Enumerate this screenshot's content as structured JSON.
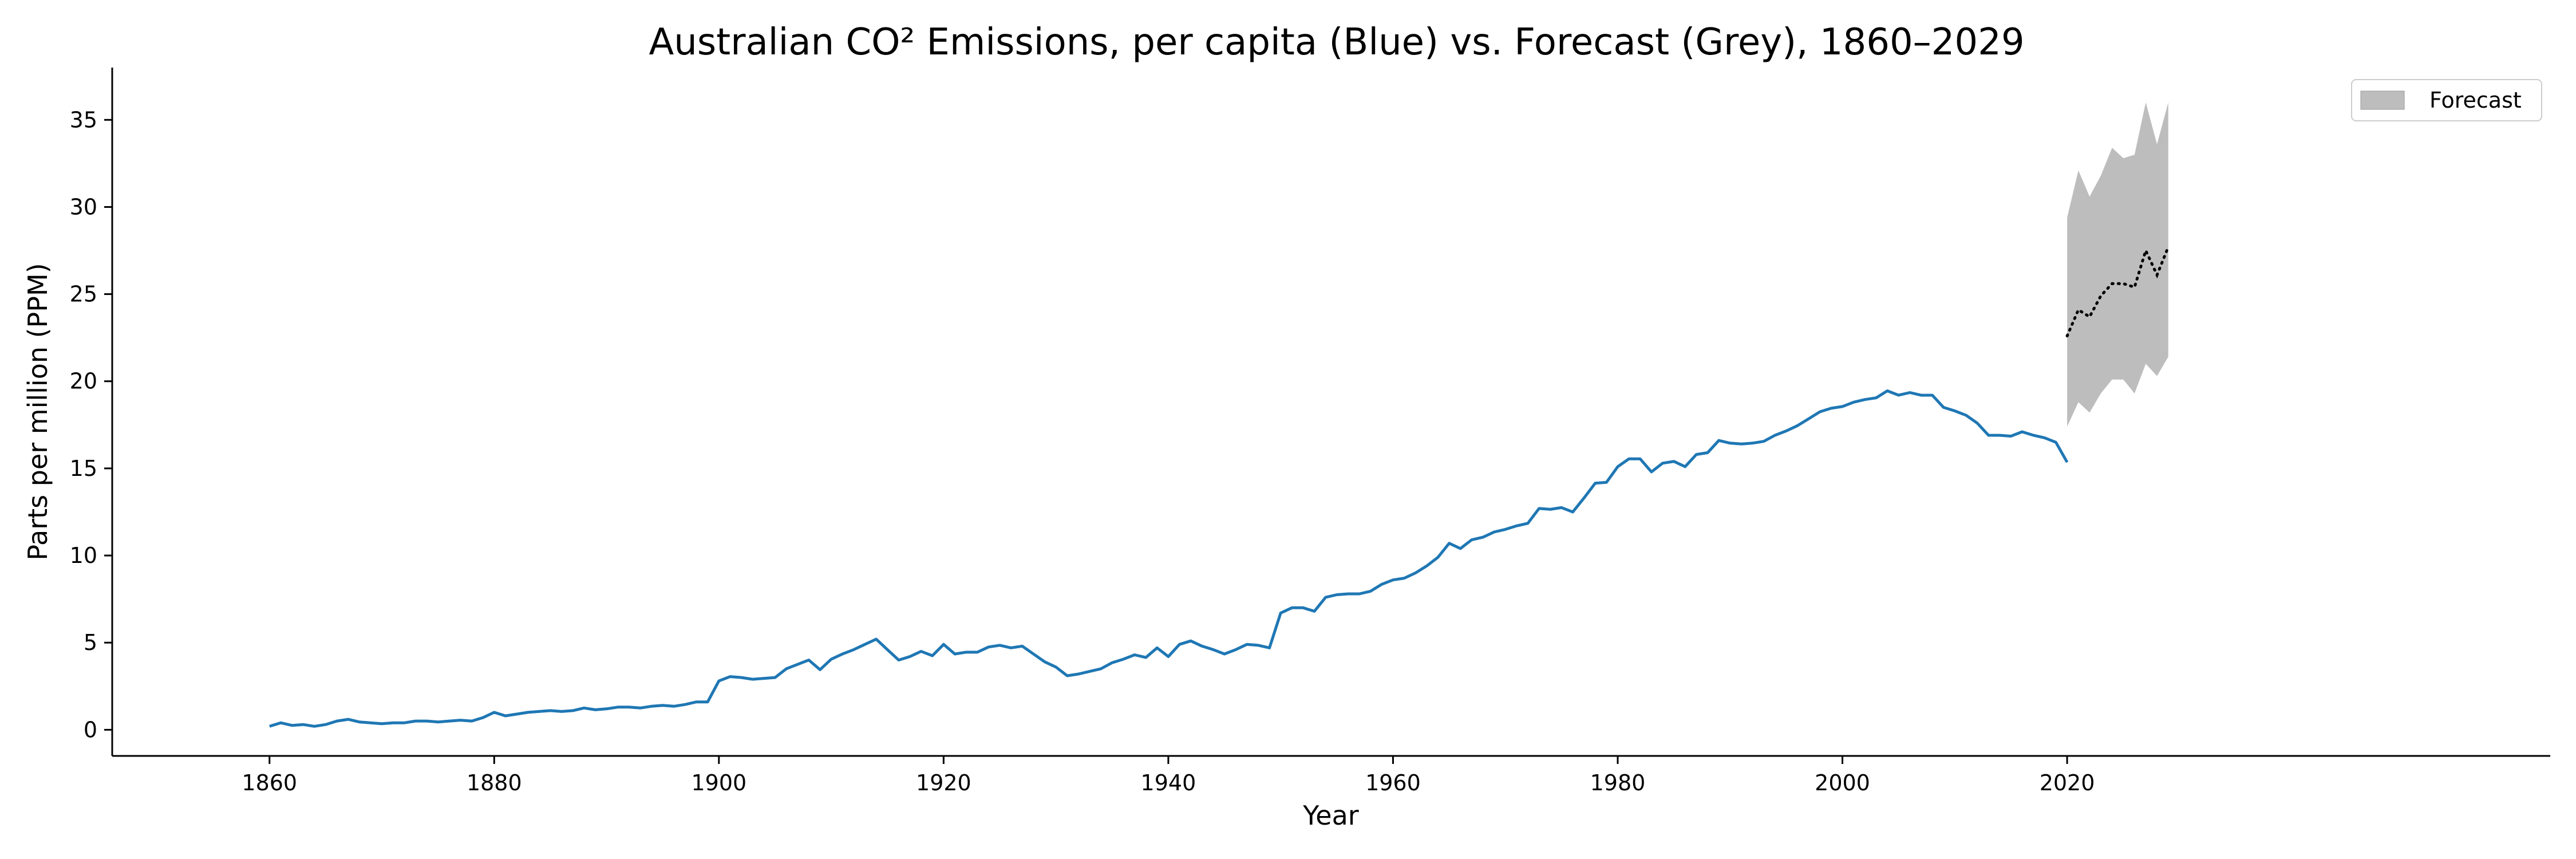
{
  "chart_data": {
    "type": "line",
    "title": "Australian CO² Emissions, per capita (Blue) vs. Forecast (Grey), 1860–2029",
    "xlabel": "Year",
    "ylabel": "Parts per million (PPM)",
    "xlim": [
      1846,
      2063
    ],
    "ylim": [
      -1.5,
      38
    ],
    "xticks": [
      1860,
      1880,
      1900,
      1920,
      1940,
      1960,
      1980,
      2000,
      2020
    ],
    "yticks": [
      0,
      5,
      10,
      15,
      20,
      25,
      30,
      35
    ],
    "grid": false,
    "legend": {
      "placement": "top-right",
      "entries": [
        "Forecast"
      ]
    },
    "colors": {
      "history": "#1f77b4",
      "forecast_band": "#bdbdbd",
      "forecast_line": "#000000"
    },
    "series": [
      {
        "x": [
          1860,
          1861,
          1862,
          1863,
          1864,
          1865,
          1866,
          1867,
          1868,
          1869,
          1870,
          1871,
          1872,
          1873,
          1874,
          1875,
          1876,
          1877,
          1878,
          1879,
          1880,
          1881,
          1882,
          1883,
          1884,
          1885,
          1886,
          1887,
          1888,
          1889,
          1890,
          1891,
          1892,
          1893,
          1894,
          1895,
          1896,
          1897,
          1898,
          1899,
          1900,
          1901,
          1902,
          1903,
          1904,
          1905,
          1906,
          1907,
          1908,
          1909,
          1910,
          1911,
          1912,
          1913,
          1914,
          1915,
          1916,
          1917,
          1918,
          1919,
          1920,
          1921,
          1922,
          1923,
          1924,
          1925,
          1926,
          1927,
          1928,
          1929,
          1930,
          1931,
          1932,
          1933,
          1934,
          1935,
          1936,
          1937,
          1938,
          1939,
          1940,
          1941,
          1942,
          1943,
          1944,
          1945,
          1946,
          1947,
          1948,
          1949,
          1950,
          1951,
          1952,
          1953,
          1954,
          1955,
          1956,
          1957,
          1958,
          1959,
          1960,
          1961,
          1962,
          1963,
          1964,
          1965,
          1966,
          1967,
          1968,
          1969,
          1970,
          1971,
          1972,
          1973,
          1974,
          1975,
          1976,
          1977,
          1978,
          1979,
          1980,
          1981,
          1982,
          1983,
          1984,
          1985,
          1986,
          1987,
          1988,
          1989,
          1990,
          1991,
          1992,
          1993,
          1994,
          1995,
          1996,
          1997,
          1998,
          1999,
          2000,
          2001,
          2002,
          2003,
          2004,
          2005,
          2006,
          2007,
          2008,
          2009,
          2010,
          2011,
          2012,
          2013,
          2014,
          2015,
          2016,
          2017,
          2018,
          2019,
          2020
        ],
        "values": [
          0.2,
          0.4,
          0.25,
          0.3,
          0.2,
          0.3,
          0.5,
          0.6,
          0.45,
          0.4,
          0.35,
          0.4,
          0.4,
          0.5,
          0.5,
          0.45,
          0.5,
          0.55,
          0.5,
          0.7,
          1.0,
          0.8,
          0.9,
          1.0,
          1.05,
          1.1,
          1.05,
          1.1,
          1.25,
          1.15,
          1.2,
          1.3,
          1.3,
          1.25,
          1.35,
          1.4,
          1.35,
          1.45,
          1.6,
          1.6,
          2.8,
          3.05,
          3.0,
          2.9,
          2.95,
          3.0,
          3.5,
          3.75,
          4.0,
          3.45,
          4.05,
          4.35,
          4.6,
          4.9,
          5.2,
          4.6,
          4.0,
          4.2,
          4.5,
          4.25,
          4.9,
          4.35,
          4.45,
          4.45,
          4.75,
          4.85,
          4.7,
          4.8,
          4.35,
          3.9,
          3.6,
          3.1,
          3.2,
          3.35,
          3.5,
          3.85,
          4.05,
          4.3,
          4.15,
          4.7,
          4.2,
          4.9,
          5.1,
          4.8,
          4.6,
          4.35,
          4.6,
          4.9,
          4.85,
          4.7,
          6.7,
          7.0,
          7.0,
          6.8,
          7.6,
          7.75,
          7.8,
          7.8,
          7.95,
          8.35,
          8.6,
          8.7,
          9.0,
          9.4,
          9.9,
          10.7,
          10.4,
          10.9,
          11.05,
          11.35,
          11.5,
          11.7,
          11.85,
          12.7,
          12.65,
          12.75,
          12.5,
          13.3,
          14.15,
          14.2,
          15.1,
          15.55,
          15.55,
          14.8,
          15.3,
          15.4,
          15.1,
          15.8,
          15.9,
          16.6,
          16.45,
          16.4,
          16.45,
          16.55,
          16.9,
          17.15,
          17.45,
          17.85,
          18.25,
          18.45,
          18.55,
          18.8,
          18.95,
          19.05,
          19.45,
          19.2,
          19.35,
          19.2,
          19.2,
          18.5,
          18.3,
          18.05,
          17.6,
          16.9,
          16.9,
          16.85,
          17.1,
          16.9,
          16.75,
          16.5,
          15.35
        ]
      },
      {
        "x": [
          2020,
          2021,
          2022,
          2023,
          2024,
          2025,
          2026,
          2027,
          2028,
          2029
        ],
        "values": [
          22.6,
          24.1,
          23.7,
          24.9,
          25.6,
          25.6,
          25.4,
          27.5,
          26.1,
          27.7
        ],
        "lower": [
          17.4,
          18.8,
          18.2,
          19.3,
          20.1,
          20.1,
          19.3,
          21.0,
          20.3,
          21.4
        ],
        "upper": [
          29.4,
          32.1,
          30.6,
          31.8,
          33.4,
          32.8,
          33.0,
          36.0,
          33.6,
          36.0
        ]
      }
    ]
  }
}
